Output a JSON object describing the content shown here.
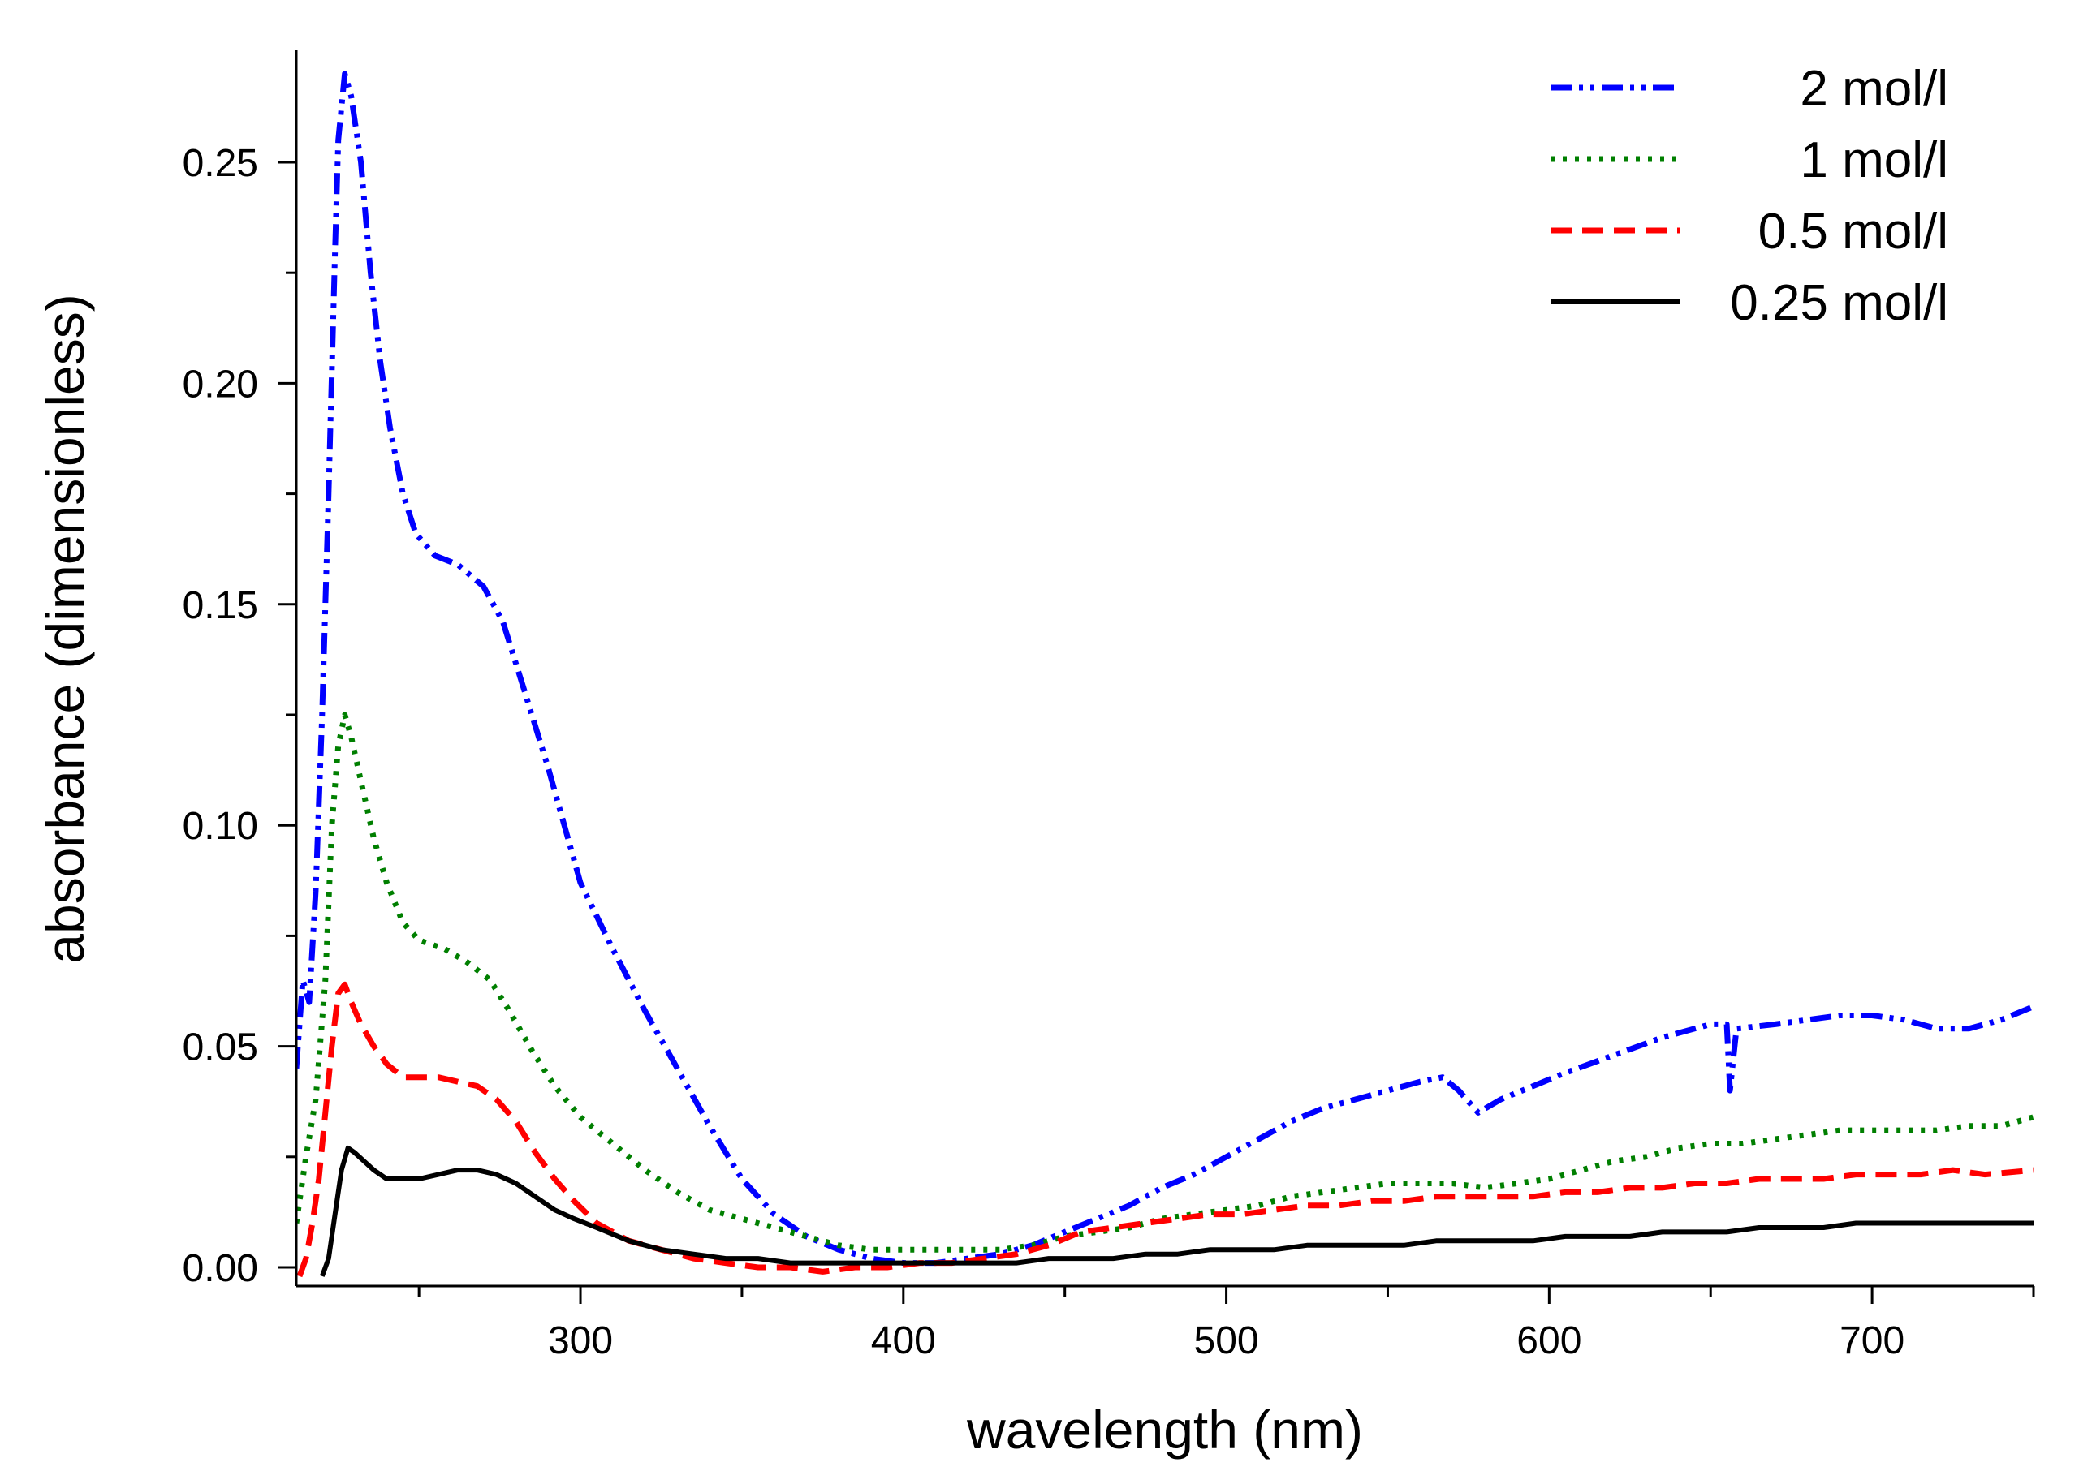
{
  "chart_data": {
    "type": "line",
    "title": "",
    "xlabel": "wavelength (nm)",
    "ylabel": "absorbance (dimensionless)",
    "xlim": [
      212,
      750
    ],
    "ylim": [
      -0.003,
      0.275
    ],
    "x_ticks": [
      300,
      400,
      500,
      600,
      700
    ],
    "x_tick_labels": [
      "300",
      "400",
      "500",
      "600",
      "700"
    ],
    "y_ticks": [
      0.0,
      0.05,
      0.1,
      0.15,
      0.2,
      0.25
    ],
    "y_tick_labels": [
      "0.00",
      "0.05",
      "0.10",
      "0.15",
      "0.20",
      "0.25"
    ],
    "grid": false,
    "legend_position": "top-right",
    "series": [
      {
        "name": "2 mol/l",
        "color": "#0000ff",
        "dash": "dash-dot-dot",
        "points": [
          [
            212,
            0.045
          ],
          [
            214,
            0.065
          ],
          [
            216,
            0.06
          ],
          [
            218,
            0.085
          ],
          [
            220,
            0.125
          ],
          [
            222,
            0.175
          ],
          [
            224,
            0.23
          ],
          [
            225,
            0.255
          ],
          [
            227,
            0.27
          ],
          [
            229,
            0.265
          ],
          [
            232,
            0.25
          ],
          [
            235,
            0.225
          ],
          [
            238,
            0.205
          ],
          [
            241,
            0.19
          ],
          [
            245,
            0.175
          ],
          [
            249,
            0.166
          ],
          [
            255,
            0.161
          ],
          [
            262,
            0.159
          ],
          [
            270,
            0.154
          ],
          [
            276,
            0.146
          ],
          [
            282,
            0.132
          ],
          [
            290,
            0.113
          ],
          [
            300,
            0.087
          ],
          [
            310,
            0.072
          ],
          [
            320,
            0.058
          ],
          [
            330,
            0.045
          ],
          [
            340,
            0.032
          ],
          [
            350,
            0.02
          ],
          [
            360,
            0.012
          ],
          [
            370,
            0.007
          ],
          [
            380,
            0.004
          ],
          [
            390,
            0.002
          ],
          [
            400,
            0.001
          ],
          [
            410,
            0.001
          ],
          [
            420,
            0.002
          ],
          [
            430,
            0.003
          ],
          [
            440,
            0.005
          ],
          [
            450,
            0.008
          ],
          [
            460,
            0.011
          ],
          [
            470,
            0.014
          ],
          [
            480,
            0.018
          ],
          [
            490,
            0.021
          ],
          [
            500,
            0.025
          ],
          [
            510,
            0.029
          ],
          [
            520,
            0.033
          ],
          [
            530,
            0.036
          ],
          [
            540,
            0.038
          ],
          [
            550,
            0.04
          ],
          [
            560,
            0.042
          ],
          [
            567,
            0.043
          ],
          [
            572,
            0.04
          ],
          [
            578,
            0.035
          ],
          [
            585,
            0.038
          ],
          [
            595,
            0.041
          ],
          [
            605,
            0.044
          ],
          [
            620,
            0.048
          ],
          [
            635,
            0.052
          ],
          [
            650,
            0.055
          ],
          [
            655,
            0.055
          ],
          [
            656,
            0.04
          ],
          [
            658,
            0.054
          ],
          [
            670,
            0.055
          ],
          [
            680,
            0.056
          ],
          [
            690,
            0.057
          ],
          [
            700,
            0.057
          ],
          [
            710,
            0.056
          ],
          [
            720,
            0.054
          ],
          [
            730,
            0.054
          ],
          [
            740,
            0.056
          ],
          [
            750,
            0.059
          ]
        ]
      },
      {
        "name": "1 mol/l",
        "color": "#007f00",
        "dash": "dot",
        "points": [
          [
            212,
            0.01
          ],
          [
            215,
            0.025
          ],
          [
            218,
            0.038
          ],
          [
            221,
            0.065
          ],
          [
            223,
            0.1
          ],
          [
            225,
            0.118
          ],
          [
            227,
            0.125
          ],
          [
            229,
            0.12
          ],
          [
            232,
            0.11
          ],
          [
            236,
            0.097
          ],
          [
            240,
            0.087
          ],
          [
            245,
            0.078
          ],
          [
            250,
            0.074
          ],
          [
            258,
            0.072
          ],
          [
            265,
            0.069
          ],
          [
            272,
            0.065
          ],
          [
            278,
            0.058
          ],
          [
            285,
            0.049
          ],
          [
            292,
            0.041
          ],
          [
            300,
            0.034
          ],
          [
            310,
            0.028
          ],
          [
            320,
            0.022
          ],
          [
            330,
            0.017
          ],
          [
            340,
            0.013
          ],
          [
            350,
            0.011
          ],
          [
            360,
            0.009
          ],
          [
            370,
            0.007
          ],
          [
            380,
            0.005
          ],
          [
            390,
            0.004
          ],
          [
            400,
            0.004
          ],
          [
            410,
            0.004
          ],
          [
            420,
            0.004
          ],
          [
            430,
            0.004
          ],
          [
            440,
            0.005
          ],
          [
            450,
            0.007
          ],
          [
            460,
            0.008
          ],
          [
            470,
            0.009
          ],
          [
            480,
            0.011
          ],
          [
            490,
            0.012
          ],
          [
            500,
            0.013
          ],
          [
            510,
            0.014
          ],
          [
            520,
            0.016
          ],
          [
            530,
            0.017
          ],
          [
            540,
            0.018
          ],
          [
            550,
            0.019
          ],
          [
            560,
            0.019
          ],
          [
            570,
            0.019
          ],
          [
            580,
            0.018
          ],
          [
            590,
            0.019
          ],
          [
            600,
            0.02
          ],
          [
            610,
            0.022
          ],
          [
            620,
            0.024
          ],
          [
            630,
            0.025
          ],
          [
            640,
            0.027
          ],
          [
            650,
            0.028
          ],
          [
            660,
            0.028
          ],
          [
            670,
            0.029
          ],
          [
            680,
            0.03
          ],
          [
            690,
            0.031
          ],
          [
            700,
            0.031
          ],
          [
            710,
            0.031
          ],
          [
            720,
            0.031
          ],
          [
            730,
            0.032
          ],
          [
            740,
            0.032
          ],
          [
            750,
            0.034
          ]
        ]
      },
      {
        "name": "0.5 mol/l",
        "color": "#ff0000",
        "dash": "dash",
        "points": [
          [
            213,
            -0.002
          ],
          [
            215,
            0.002
          ],
          [
            217,
            0.01
          ],
          [
            219,
            0.02
          ],
          [
            221,
            0.035
          ],
          [
            223,
            0.05
          ],
          [
            225,
            0.062
          ],
          [
            227,
            0.064
          ],
          [
            229,
            0.06
          ],
          [
            232,
            0.055
          ],
          [
            236,
            0.05
          ],
          [
            240,
            0.046
          ],
          [
            245,
            0.043
          ],
          [
            250,
            0.043
          ],
          [
            256,
            0.043
          ],
          [
            262,
            0.042
          ],
          [
            268,
            0.041
          ],
          [
            274,
            0.038
          ],
          [
            280,
            0.033
          ],
          [
            286,
            0.026
          ],
          [
            292,
            0.02
          ],
          [
            298,
            0.015
          ],
          [
            305,
            0.01
          ],
          [
            315,
            0.006
          ],
          [
            325,
            0.004
          ],
          [
            335,
            0.002
          ],
          [
            345,
            0.001
          ],
          [
            355,
            0.0
          ],
          [
            365,
            0.0
          ],
          [
            375,
            -0.001
          ],
          [
            385,
            0.0
          ],
          [
            395,
            0.0
          ],
          [
            405,
            0.001
          ],
          [
            415,
            0.001
          ],
          [
            425,
            0.002
          ],
          [
            435,
            0.003
          ],
          [
            445,
            0.005
          ],
          [
            455,
            0.008
          ],
          [
            465,
            0.009
          ],
          [
            475,
            0.01
          ],
          [
            485,
            0.011
          ],
          [
            495,
            0.012
          ],
          [
            505,
            0.012
          ],
          [
            515,
            0.013
          ],
          [
            525,
            0.014
          ],
          [
            535,
            0.014
          ],
          [
            545,
            0.015
          ],
          [
            555,
            0.015
          ],
          [
            565,
            0.016
          ],
          [
            575,
            0.016
          ],
          [
            585,
            0.016
          ],
          [
            595,
            0.016
          ],
          [
            605,
            0.017
          ],
          [
            615,
            0.017
          ],
          [
            625,
            0.018
          ],
          [
            635,
            0.018
          ],
          [
            645,
            0.019
          ],
          [
            655,
            0.019
          ],
          [
            665,
            0.02
          ],
          [
            675,
            0.02
          ],
          [
            685,
            0.02
          ],
          [
            695,
            0.021
          ],
          [
            705,
            0.021
          ],
          [
            715,
            0.021
          ],
          [
            725,
            0.022
          ],
          [
            735,
            0.021
          ],
          [
            750,
            0.022
          ]
        ]
      },
      {
        "name": "0.25 mol/l",
        "color": "#000000",
        "dash": "solid",
        "points": [
          [
            220,
            -0.002
          ],
          [
            222,
            0.002
          ],
          [
            224,
            0.012
          ],
          [
            226,
            0.022
          ],
          [
            228,
            0.027
          ],
          [
            230,
            0.026
          ],
          [
            233,
            0.024
          ],
          [
            236,
            0.022
          ],
          [
            240,
            0.02
          ],
          [
            245,
            0.02
          ],
          [
            250,
            0.02
          ],
          [
            256,
            0.021
          ],
          [
            262,
            0.022
          ],
          [
            268,
            0.022
          ],
          [
            274,
            0.021
          ],
          [
            280,
            0.019
          ],
          [
            286,
            0.016
          ],
          [
            292,
            0.013
          ],
          [
            298,
            0.011
          ],
          [
            305,
            0.009
          ],
          [
            315,
            0.006
          ],
          [
            325,
            0.004
          ],
          [
            335,
            0.003
          ],
          [
            345,
            0.002
          ],
          [
            355,
            0.002
          ],
          [
            365,
            0.001
          ],
          [
            375,
            0.001
          ],
          [
            385,
            0.001
          ],
          [
            395,
            0.001
          ],
          [
            405,
            0.001
          ],
          [
            415,
            0.001
          ],
          [
            425,
            0.001
          ],
          [
            435,
            0.001
          ],
          [
            445,
            0.002
          ],
          [
            455,
            0.002
          ],
          [
            465,
            0.002
          ],
          [
            475,
            0.003
          ],
          [
            485,
            0.003
          ],
          [
            495,
            0.004
          ],
          [
            505,
            0.004
          ],
          [
            515,
            0.004
          ],
          [
            525,
            0.005
          ],
          [
            535,
            0.005
          ],
          [
            545,
            0.005
          ],
          [
            555,
            0.005
          ],
          [
            565,
            0.006
          ],
          [
            575,
            0.006
          ],
          [
            585,
            0.006
          ],
          [
            595,
            0.006
          ],
          [
            605,
            0.007
          ],
          [
            615,
            0.007
          ],
          [
            625,
            0.007
          ],
          [
            635,
            0.008
          ],
          [
            645,
            0.008
          ],
          [
            655,
            0.008
          ],
          [
            665,
            0.009
          ],
          [
            675,
            0.009
          ],
          [
            685,
            0.009
          ],
          [
            695,
            0.01
          ],
          [
            705,
            0.01
          ],
          [
            715,
            0.01
          ],
          [
            725,
            0.01
          ],
          [
            735,
            0.01
          ],
          [
            750,
            0.01
          ]
        ]
      }
    ]
  }
}
